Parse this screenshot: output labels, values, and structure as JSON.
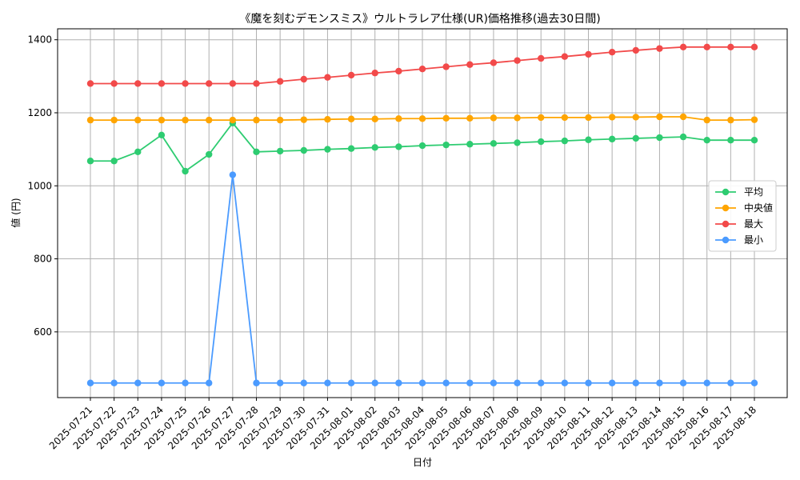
{
  "chart_data": {
    "type": "line",
    "title": "《魔を刻むデモンスミス》ウルトラレア仕様(UR)価格推移(過去30日間)",
    "xlabel": "日付",
    "ylabel": "値 (円)",
    "ylim": [
      420,
      1430
    ],
    "yticks": [
      600,
      800,
      1000,
      1200,
      1400
    ],
    "grid": true,
    "legend_position": "center-right",
    "categories": [
      "2025-07-21",
      "2025-07-22",
      "2025-07-23",
      "2025-07-24",
      "2025-07-25",
      "2025-07-26",
      "2025-07-27",
      "2025-07-28",
      "2025-07-29",
      "2025-07-30",
      "2025-07-31",
      "2025-08-01",
      "2025-08-02",
      "2025-08-03",
      "2025-08-04",
      "2025-08-05",
      "2025-08-06",
      "2025-08-07",
      "2025-08-08",
      "2025-08-09",
      "2025-08-10",
      "2025-08-11",
      "2025-08-12",
      "2025-08-13",
      "2025-08-14",
      "2025-08-15",
      "2025-08-16",
      "2025-08-17",
      "2025-08-18"
    ],
    "series": [
      {
        "name": "平均",
        "color": "#2ecc71",
        "values": [
          1068,
          1068,
          1093,
          1139,
          1040,
          1086,
          1172,
          1093,
          1095,
          1097,
          1100,
          1102,
          1105,
          1107,
          1110,
          1112,
          1114,
          1116,
          1118,
          1121,
          1123,
          1126,
          1128,
          1130,
          1132,
          1134,
          1125,
          1125,
          1125
        ]
      },
      {
        "name": "中央値",
        "color": "#ffa500",
        "values": [
          1180,
          1180,
          1180,
          1180,
          1180,
          1180,
          1180,
          1180,
          1180,
          1181,
          1182,
          1183,
          1183,
          1184,
          1184,
          1185,
          1185,
          1186,
          1186,
          1187,
          1187,
          1187,
          1188,
          1188,
          1189,
          1189,
          1180,
          1180,
          1181
        ]
      },
      {
        "name": "最大",
        "color": "#f24a4a",
        "values": [
          1280,
          1280,
          1280,
          1280,
          1280,
          1280,
          1280,
          1280,
          1286,
          1292,
          1297,
          1303,
          1309,
          1314,
          1320,
          1326,
          1332,
          1337,
          1343,
          1349,
          1354,
          1360,
          1366,
          1371,
          1376,
          1380,
          1380,
          1380,
          1380
        ]
      },
      {
        "name": "最小",
        "color": "#4b9bff",
        "values": [
          460,
          460,
          460,
          460,
          460,
          460,
          1030,
          460,
          460,
          460,
          460,
          460,
          460,
          460,
          460,
          460,
          460,
          460,
          460,
          460,
          460,
          460,
          460,
          460,
          460,
          460,
          460,
          460,
          460
        ]
      }
    ]
  }
}
